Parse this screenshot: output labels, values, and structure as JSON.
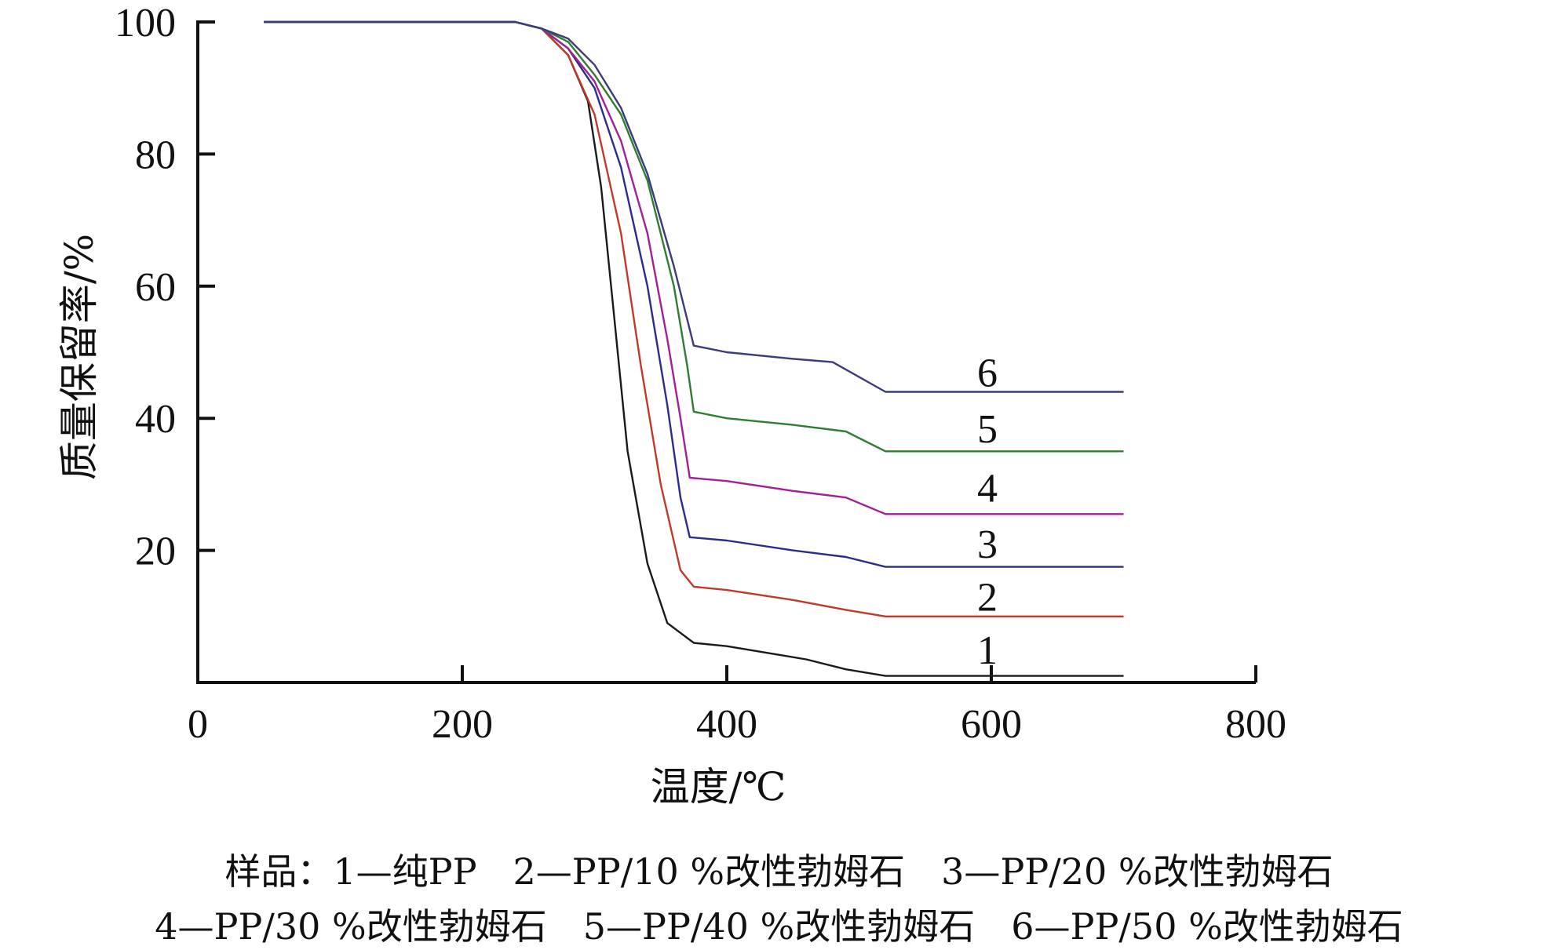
{
  "chart_data": {
    "type": "line",
    "title": "",
    "xlabel": "温度/℃",
    "ylabel": "质量保留率/%",
    "xlim": [
      0,
      800
    ],
    "ylim": [
      0,
      100
    ],
    "x_ticks": [
      "0",
      "200",
      "400",
      "600",
      "800"
    ],
    "y_ticks": [
      "20",
      "40",
      "60",
      "80",
      "100"
    ],
    "grid": false,
    "series": [
      {
        "name": "1",
        "color": "#1a1a1a",
        "points": [
          [
            50,
            100
          ],
          [
            240,
            100
          ],
          [
            260,
            99
          ],
          [
            280,
            95
          ],
          [
            295,
            88
          ],
          [
            305,
            75
          ],
          [
            315,
            55
          ],
          [
            325,
            35
          ],
          [
            340,
            18
          ],
          [
            355,
            9
          ],
          [
            375,
            6
          ],
          [
            400,
            5.5
          ],
          [
            430,
            4.5
          ],
          [
            460,
            3.5
          ],
          [
            490,
            2
          ],
          [
            520,
            1
          ],
          [
            700,
            1
          ]
        ]
      },
      {
        "name": "2",
        "color": "#c0392b",
        "points": [
          [
            50,
            100
          ],
          [
            240,
            100
          ],
          [
            260,
            99
          ],
          [
            280,
            95
          ],
          [
            300,
            86
          ],
          [
            320,
            68
          ],
          [
            335,
            48
          ],
          [
            350,
            30
          ],
          [
            365,
            17
          ],
          [
            375,
            14.5
          ],
          [
            400,
            14
          ],
          [
            450,
            12.5
          ],
          [
            490,
            11
          ],
          [
            520,
            10
          ],
          [
            700,
            10
          ]
        ]
      },
      {
        "name": "3",
        "color": "#2c2c8c",
        "points": [
          [
            50,
            100
          ],
          [
            240,
            100
          ],
          [
            260,
            99
          ],
          [
            280,
            96
          ],
          [
            300,
            90
          ],
          [
            320,
            78
          ],
          [
            340,
            60
          ],
          [
            355,
            42
          ],
          [
            365,
            28
          ],
          [
            372,
            22
          ],
          [
            400,
            21.5
          ],
          [
            450,
            20
          ],
          [
            490,
            19
          ],
          [
            520,
            17.5
          ],
          [
            700,
            17.5
          ]
        ]
      },
      {
        "name": "4",
        "color": "#a0209a",
        "points": [
          [
            50,
            100
          ],
          [
            240,
            100
          ],
          [
            260,
            99
          ],
          [
            280,
            96
          ],
          [
            300,
            91
          ],
          [
            320,
            82
          ],
          [
            340,
            68
          ],
          [
            355,
            52
          ],
          [
            365,
            40
          ],
          [
            372,
            31
          ],
          [
            400,
            30.5
          ],
          [
            450,
            29
          ],
          [
            490,
            28
          ],
          [
            520,
            25.5
          ],
          [
            700,
            25.5
          ]
        ]
      },
      {
        "name": "5",
        "color": "#2e7d32",
        "points": [
          [
            50,
            100
          ],
          [
            240,
            100
          ],
          [
            260,
            99
          ],
          [
            280,
            97
          ],
          [
            300,
            92
          ],
          [
            320,
            86
          ],
          [
            340,
            76
          ],
          [
            360,
            60
          ],
          [
            370,
            48
          ],
          [
            375,
            41
          ],
          [
            400,
            40
          ],
          [
            450,
            39
          ],
          [
            490,
            38
          ],
          [
            520,
            35
          ],
          [
            700,
            35
          ]
        ]
      },
      {
        "name": "6",
        "color": "#3b3b7a",
        "points": [
          [
            50,
            100
          ],
          [
            240,
            100
          ],
          [
            260,
            99
          ],
          [
            280,
            97.5
          ],
          [
            300,
            93.5
          ],
          [
            320,
            87
          ],
          [
            340,
            77
          ],
          [
            360,
            63
          ],
          [
            370,
            55
          ],
          [
            375,
            51
          ],
          [
            400,
            50
          ],
          [
            450,
            49
          ],
          [
            480,
            48.5
          ],
          [
            520,
            44
          ],
          [
            700,
            44
          ]
        ]
      }
    ],
    "series_labels": [
      {
        "text": "1",
        "x": 597,
        "y": 5
      },
      {
        "text": "2",
        "x": 597,
        "y": 13
      },
      {
        "text": "3",
        "x": 597,
        "y": 21
      },
      {
        "text": "4",
        "x": 597,
        "y": 29.5
      },
      {
        "text": "5",
        "x": 597,
        "y": 38.5
      },
      {
        "text": "6",
        "x": 597,
        "y": 47
      }
    ],
    "caption_line1": "样品：1—纯PP　2—PP/10 %改性勃姆石　3—PP/20 %改性勃姆石",
    "caption_line2": "4—PP/30 %改性勃姆石　5—PP/40 %改性勃姆石　6—PP/50 %改性勃姆石"
  }
}
